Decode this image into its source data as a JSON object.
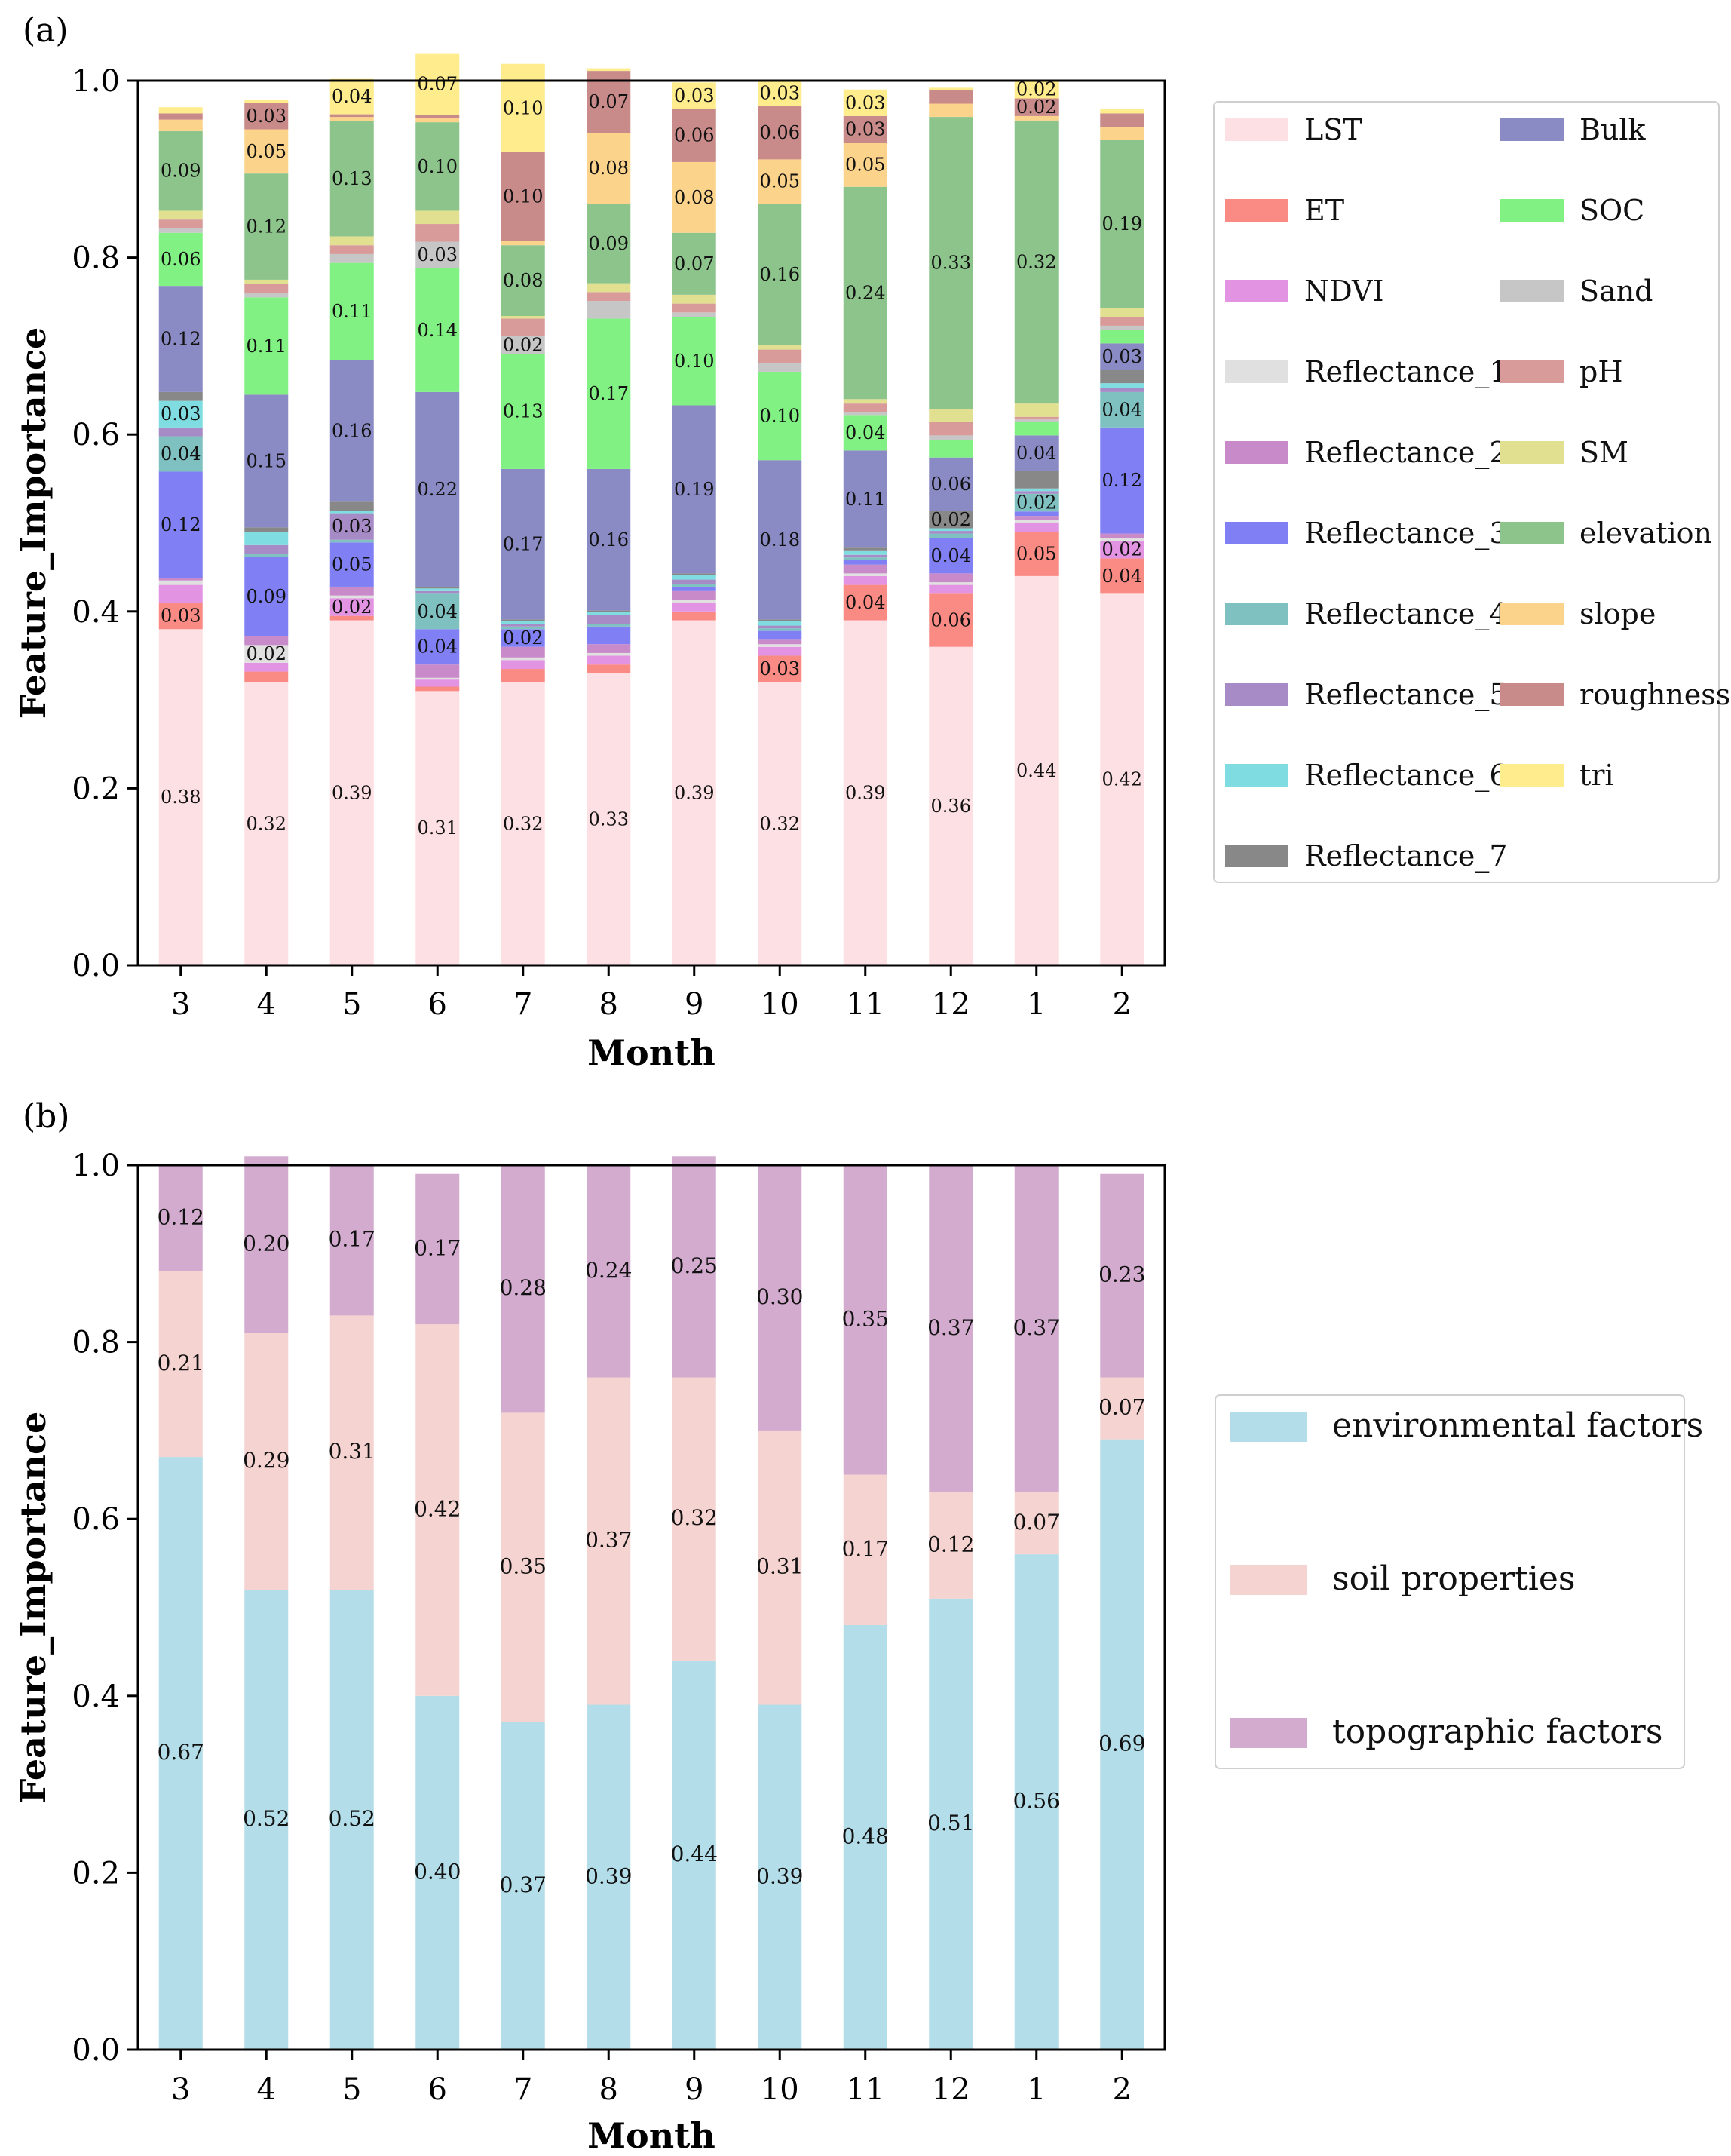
{
  "chart_data": [
    {
      "panel": "(a)",
      "type": "bar",
      "stacked": true,
      "xlabel": "Month",
      "ylabel": "Feature_Importance",
      "ylim": [
        0,
        1.0
      ],
      "yticks": [
        "0.0",
        "0.2",
        "0.4",
        "0.6",
        "0.8",
        "1.0"
      ],
      "categories": [
        "3",
        "4",
        "5",
        "6",
        "7",
        "8",
        "9",
        "10",
        "11",
        "12",
        "1",
        "2"
      ],
      "legend_position": "right",
      "series": [
        {
          "name": "LST",
          "color": "#fde0e4",
          "values": [
            0.38,
            0.32,
            0.39,
            0.31,
            0.32,
            0.33,
            0.39,
            0.32,
            0.39,
            0.36,
            0.44,
            0.42
          ],
          "labels": [
            "0.38",
            "0.32",
            "0.39",
            "0.31",
            "0.32",
            "0.33",
            "0.39",
            "0.32",
            "0.39",
            "0.36",
            "0.44",
            "0.42"
          ]
        },
        {
          "name": "ET",
          "color": "#fa8a84",
          "values": [
            0.03,
            0.012,
            0.005,
            0.005,
            0.015,
            0.01,
            0.01,
            0.03,
            0.04,
            0.06,
            0.05,
            0.04
          ],
          "labels": [
            "0.03",
            "",
            "",
            "",
            "",
            "",
            "",
            "0.03",
            "0.04",
            "0.06",
            "0.05",
            "0.04"
          ]
        },
        {
          "name": "NDVI",
          "color": "#e293e2",
          "values": [
            0.02,
            0.01,
            0.02,
            0.008,
            0.01,
            0.01,
            0.01,
            0.01,
            0.01,
            0.01,
            0.01,
            0.02
          ],
          "labels": [
            "",
            "",
            "0.02",
            "",
            "",
            "",
            "",
            "",
            "",
            "",
            "",
            "0.02"
          ]
        },
        {
          "name": "Reflectance_1",
          "color": "#e0e0e0",
          "values": [
            0.005,
            0.02,
            0.003,
            0.002,
            0.003,
            0.003,
            0.003,
            0.003,
            0.003,
            0.003,
            0.003,
            0.003
          ],
          "labels": [
            "",
            "0.02",
            "",
            "",
            "",
            "",
            "",
            "",
            "",
            "",
            "",
            ""
          ]
        },
        {
          "name": "Reflectance_2",
          "color": "#c88ac8",
          "values": [
            0.003,
            0.01,
            0.01,
            0.015,
            0.012,
            0.01,
            0.01,
            0.005,
            0.01,
            0.01,
            0.005,
            0.005
          ],
          "labels": [
            "",
            "",
            "",
            "",
            "",
            "",
            "",
            "",
            "",
            "",
            "",
            ""
          ]
        },
        {
          "name": "Reflectance_3",
          "color": "#8080f4",
          "values": [
            0.12,
            0.09,
            0.05,
            0.04,
            0.02,
            0.02,
            0.005,
            0.01,
            0.005,
            0.04,
            0.005,
            0.12
          ],
          "labels": [
            "0.12",
            "0.09",
            "0.05",
            "0.04",
            "0.02",
            "",
            "",
            "",
            "",
            "0.04",
            "",
            "0.12"
          ]
        },
        {
          "name": "Reflectance_4",
          "color": "#7fc1c1",
          "values": [
            0.04,
            0.003,
            0.003,
            0.04,
            0.003,
            0.003,
            0.003,
            0.003,
            0.003,
            0.005,
            0.02,
            0.04
          ],
          "labels": [
            "0.04",
            "",
            "",
            "0.04",
            "",
            "",
            "",
            "",
            "",
            "",
            "0.02",
            "0.04"
          ]
        },
        {
          "name": "Reflectance_5",
          "color": "#a68bc6",
          "values": [
            0.01,
            0.01,
            0.03,
            0.003,
            0.003,
            0.01,
            0.005,
            0.003,
            0.003,
            0.003,
            0.003,
            0.005
          ],
          "labels": [
            "",
            "",
            "0.03",
            "",
            "",
            "",
            "",
            "",
            "",
            "",
            "",
            ""
          ]
        },
        {
          "name": "Reflectance_6",
          "color": "#7fdde1",
          "values": [
            0.03,
            0.015,
            0.003,
            0.003,
            0.003,
            0.003,
            0.005,
            0.005,
            0.005,
            0.003,
            0.003,
            0.005
          ],
          "labels": [
            "0.03",
            "",
            "",
            "",
            "",
            "",
            "",
            "",
            "",
            "",
            "",
            ""
          ]
        },
        {
          "name": "Reflectance_7",
          "color": "#888888",
          "values": [
            0.01,
            0.005,
            0.01,
            0.002,
            0.002,
            0.002,
            0.002,
            0.002,
            0.003,
            0.02,
            0.02,
            0.015
          ],
          "labels": [
            "",
            "",
            "",
            "",
            "",
            "",
            "",
            "",
            "",
            "0.02",
            "",
            ""
          ]
        },
        {
          "name": "Bulk",
          "color": "#8a8ac4",
          "values": [
            0.12,
            0.15,
            0.16,
            0.22,
            0.17,
            0.16,
            0.19,
            0.18,
            0.11,
            0.06,
            0.04,
            0.03
          ],
          "labels": [
            "0.12",
            "0.15",
            "0.16",
            "0.22",
            "0.17",
            "0.16",
            "0.19",
            "0.18",
            "0.11",
            "0.06",
            "0.04",
            "0.03"
          ]
        },
        {
          "name": "SOC",
          "color": "#82f184",
          "values": [
            0.06,
            0.11,
            0.11,
            0.14,
            0.13,
            0.17,
            0.1,
            0.1,
            0.04,
            0.02,
            0.015,
            0.015
          ],
          "labels": [
            "0.06",
            "0.11",
            "0.11",
            "0.14",
            "0.13",
            "0.17",
            "0.10",
            "0.10",
            "0.04",
            "",
            "",
            ""
          ]
        },
        {
          "name": "Sand",
          "color": "#c6c6c6",
          "values": [
            0.005,
            0.005,
            0.01,
            0.03,
            0.02,
            0.02,
            0.005,
            0.01,
            0.003,
            0.005,
            0.003,
            0.005
          ],
          "labels": [
            "",
            "",
            "",
            "0.03",
            "0.02",
            "",
            "",
            "",
            "",
            "",
            "",
            ""
          ]
        },
        {
          "name": "pH",
          "color": "#d99a9a",
          "values": [
            0.01,
            0.01,
            0.01,
            0.02,
            0.02,
            0.01,
            0.01,
            0.015,
            0.01,
            0.015,
            0.003,
            0.01
          ],
          "labels": [
            "",
            "",
            "",
            "",
            "",
            "",
            "",
            "",
            "",
            "",
            "",
            ""
          ]
        },
        {
          "name": "SM",
          "color": "#e0e090",
          "values": [
            0.01,
            0.005,
            0.01,
            0.015,
            0.003,
            0.01,
            0.01,
            0.005,
            0.005,
            0.015,
            0.015,
            0.01
          ],
          "labels": [
            "",
            "",
            "",
            "",
            "",
            "",
            "",
            "",
            "",
            "",
            "",
            ""
          ]
        },
        {
          "name": "elevation",
          "color": "#8cc48c",
          "values": [
            0.09,
            0.12,
            0.13,
            0.1,
            0.08,
            0.09,
            0.07,
            0.16,
            0.24,
            0.33,
            0.32,
            0.19
          ],
          "labels": [
            "0.09",
            "0.12",
            "0.13",
            "0.10",
            "0.08",
            "0.09",
            "0.07",
            "0.16",
            "0.24",
            "0.33",
            "0.32",
            "0.19"
          ]
        },
        {
          "name": "slope",
          "color": "#fbd38a",
          "values": [
            0.013,
            0.05,
            0.005,
            0.005,
            0.005,
            0.08,
            0.08,
            0.05,
            0.05,
            0.015,
            0.005,
            0.015
          ],
          "labels": [
            "",
            "0.05",
            "",
            "",
            "",
            "0.08",
            "0.08",
            "0.05",
            "0.05",
            "",
            "",
            ""
          ]
        },
        {
          "name": "roughness",
          "color": "#c98a8a",
          "values": [
            0.007,
            0.03,
            0.003,
            0.003,
            0.1,
            0.07,
            0.06,
            0.06,
            0.03,
            0.015,
            0.02,
            0.015
          ],
          "labels": [
            "",
            "0.03",
            "",
            "",
            "0.10",
            "0.07",
            "0.06",
            "0.06",
            "0.03",
            "",
            "0.02",
            ""
          ]
        },
        {
          "name": "tri",
          "color": "#ffec8c",
          "values": [
            0.007,
            0.003,
            0.04,
            0.07,
            0.1,
            0.003,
            0.03,
            0.03,
            0.03,
            0.003,
            0.02,
            0.005
          ],
          "labels": [
            "",
            "",
            "0.04",
            "0.07",
            "0.10",
            "",
            "0.03",
            "0.03",
            "0.03",
            "",
            "0.02",
            ""
          ]
        }
      ]
    },
    {
      "panel": "(b)",
      "type": "bar",
      "stacked": true,
      "xlabel": "Month",
      "ylabel": "Feature_Importance",
      "ylim": [
        0,
        1.0
      ],
      "yticks": [
        "0.0",
        "0.2",
        "0.4",
        "0.6",
        "0.8",
        "1.0"
      ],
      "categories": [
        "3",
        "4",
        "5",
        "6",
        "7",
        "8",
        "9",
        "10",
        "11",
        "12",
        "1",
        "2"
      ],
      "legend_position": "right",
      "series": [
        {
          "name": "environmental factors",
          "color": "#b3dde8",
          "values": [
            0.67,
            0.52,
            0.52,
            0.4,
            0.37,
            0.39,
            0.44,
            0.39,
            0.48,
            0.51,
            0.56,
            0.69
          ],
          "labels": [
            "0.67",
            "0.52",
            "0.52",
            "0.40",
            "0.37",
            "0.39",
            "0.44",
            "0.39",
            "0.48",
            "0.51",
            "0.56",
            "0.69"
          ]
        },
        {
          "name": "soil properties",
          "color": "#f5d3d0",
          "values": [
            0.21,
            0.29,
            0.31,
            0.42,
            0.35,
            0.37,
            0.32,
            0.31,
            0.17,
            0.12,
            0.07,
            0.07
          ],
          "labels": [
            "0.21",
            "0.29",
            "0.31",
            "0.42",
            "0.35",
            "0.37",
            "0.32",
            "0.31",
            "0.17",
            "0.12",
            "0.07",
            "0.07"
          ]
        },
        {
          "name": "topographic factors",
          "color": "#d2abce",
          "values": [
            0.12,
            0.2,
            0.17,
            0.17,
            0.28,
            0.24,
            0.25,
            0.3,
            0.35,
            0.37,
            0.37,
            0.23
          ],
          "labels": [
            "0.12",
            "0.20",
            "0.17",
            "0.17",
            "0.28",
            "0.24",
            "0.25",
            "0.30",
            "0.35",
            "0.37",
            "0.37",
            "0.23"
          ]
        }
      ]
    }
  ]
}
